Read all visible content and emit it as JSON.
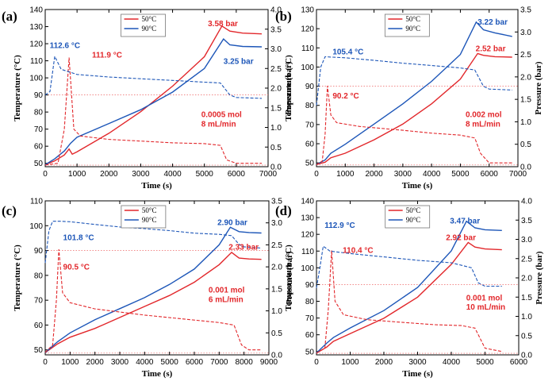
{
  "figure": {
    "colors": {
      "red": "#e2272b",
      "blue": "#1d56b8",
      "dotted_red": "#f07a7a"
    }
  },
  "chart_data": [
    {
      "type": "line",
      "panel_label": "(a)",
      "xlabel": "Time (s)",
      "ylabel_left": "Temperature (°C)",
      "ylabel_right": "Pressure (bar)",
      "xlim": [
        0,
        7000
      ],
      "ylim_left": [
        48,
        140
      ],
      "ylim_right": [
        0,
        4.0
      ],
      "xticks": [
        "0",
        "1000",
        "2000",
        "3000",
        "4000",
        "5000",
        "6000",
        "7000"
      ],
      "yticks_left": [
        "50",
        "60",
        "70",
        "80",
        "90",
        "100",
        "110",
        "120",
        "130",
        "140"
      ],
      "yticks_right": [
        "0.0",
        "0.5",
        "1.0",
        "1.5",
        "2.0",
        "2.5",
        "3.0",
        "3.5",
        "4.0"
      ],
      "legend": [
        "50°C",
        "90°C"
      ],
      "annotations": [
        "3.58 bar",
        "3.25 bar",
        "112.6 °C",
        "111.9 °C",
        "0.0005 mol",
        "8 mL/min"
      ],
      "ref_line_temp": 90,
      "series": [
        {
          "name": "50°C pressure",
          "axis": "right",
          "style": "solid",
          "color": "red",
          "x": [
            0,
            300,
            600,
            750,
            850,
            1000,
            2000,
            3000,
            4000,
            5000,
            5550,
            5800,
            6200,
            6800
          ],
          "y": [
            0.05,
            0.15,
            0.3,
            0.45,
            0.32,
            0.38,
            0.85,
            1.4,
            2.05,
            2.8,
            3.58,
            3.45,
            3.4,
            3.38
          ]
        },
        {
          "name": "90°C pressure",
          "axis": "right",
          "style": "solid",
          "color": "blue",
          "x": [
            0,
            300,
            600,
            800,
            1000,
            2000,
            3000,
            4000,
            5000,
            5600,
            5800,
            6200,
            6800
          ],
          "y": [
            0.05,
            0.2,
            0.4,
            0.6,
            0.75,
            1.1,
            1.45,
            1.9,
            2.5,
            3.25,
            3.1,
            3.06,
            3.05
          ]
        },
        {
          "name": "50°C temperature",
          "axis": "left",
          "style": "dashed",
          "color": "red",
          "x": [
            0,
            400,
            600,
            750,
            900,
            1100,
            2000,
            3000,
            4000,
            5000,
            5500,
            5700,
            6000,
            6800
          ],
          "y": [
            49,
            50,
            70,
            111.9,
            70,
            66,
            64,
            63,
            62,
            61.5,
            60.5,
            52,
            50,
            50
          ]
        },
        {
          "name": "90°C temperature",
          "axis": "left",
          "style": "dashed",
          "color": "blue",
          "x": [
            0,
            150,
            300,
            500,
            1000,
            2000,
            3000,
            4000,
            5000,
            5500,
            5800,
            6000,
            6800
          ],
          "y": [
            90,
            92,
            112.6,
            105,
            102,
            100.5,
            99.5,
            98.5,
            97.5,
            97,
            90,
            88.5,
            88
          ]
        }
      ]
    },
    {
      "type": "line",
      "panel_label": "(b)",
      "xlabel": "Time (s)",
      "ylabel_left": "Temperature (°C)",
      "ylabel_right": "Pressure (bar)",
      "xlim": [
        0,
        7000
      ],
      "ylim_left": [
        48,
        130
      ],
      "ylim_right": [
        0,
        3.5
      ],
      "xticks": [
        "0",
        "1000",
        "2000",
        "3000",
        "4000",
        "5000",
        "6000",
        "7000"
      ],
      "yticks_left": [
        "50",
        "60",
        "70",
        "80",
        "90",
        "100",
        "110",
        "120",
        "130"
      ],
      "yticks_right": [
        "0.0",
        "0.5",
        "1.0",
        "1.5",
        "2.0",
        "2.5",
        "3.0",
        "3.5"
      ],
      "legend": [
        "50°C",
        "90°C"
      ],
      "annotations": [
        "3.22 bar",
        "2.52 bar",
        "105.4 °C",
        "90.2 °C",
        "0.002 mol",
        "8 mL/min"
      ],
      "ref_line_temp": 90,
      "series": [
        {
          "name": "50°C pressure",
          "axis": "right",
          "style": "solid",
          "color": "red",
          "x": [
            0,
            300,
            500,
            1000,
            2000,
            3000,
            4000,
            5000,
            5600,
            5800,
            6200,
            6800
          ],
          "y": [
            0.05,
            0.1,
            0.2,
            0.3,
            0.6,
            0.95,
            1.4,
            1.95,
            2.52,
            2.48,
            2.45,
            2.44
          ]
        },
        {
          "name": "90°C pressure",
          "axis": "right",
          "style": "solid",
          "color": "blue",
          "x": [
            0,
            300,
            500,
            1000,
            2000,
            3000,
            4000,
            5000,
            5550,
            5800,
            6200,
            6800
          ],
          "y": [
            0.05,
            0.15,
            0.3,
            0.5,
            0.95,
            1.4,
            1.9,
            2.5,
            3.22,
            3.05,
            2.98,
            2.9
          ]
        },
        {
          "name": "50°C temperature",
          "axis": "left",
          "style": "dashed",
          "color": "red",
          "x": [
            0,
            200,
            300,
            380,
            500,
            700,
            1500,
            3000,
            4000,
            5000,
            5500,
            5700,
            6000,
            6800
          ],
          "y": [
            49,
            51,
            65,
            90.2,
            75,
            71,
            69,
            67,
            65.5,
            64.5,
            63,
            55,
            50,
            50
          ]
        },
        {
          "name": "90°C temperature",
          "axis": "left",
          "style": "dashed",
          "color": "blue",
          "x": [
            0,
            150,
            300,
            500,
            1000,
            2000,
            3000,
            4000,
            5000,
            5500,
            5800,
            6000,
            6800
          ],
          "y": [
            80,
            100,
            105.4,
            105.2,
            104.8,
            103.5,
            102,
            100.8,
            99.5,
            98.5,
            90,
            88.5,
            88
          ]
        }
      ]
    },
    {
      "type": "line",
      "panel_label": "(c)",
      "xlabel": "Time (s)",
      "ylabel_left": "Temperature (°C)",
      "ylabel_right": "Pressure (bar)",
      "xlim": [
        0,
        9000
      ],
      "ylim_left": [
        48,
        110
      ],
      "ylim_right": [
        0,
        3.5
      ],
      "xticks": [
        "0",
        "1000",
        "2000",
        "3000",
        "4000",
        "5000",
        "6000",
        "7000",
        "8000",
        "9000"
      ],
      "yticks_left": [
        "50",
        "60",
        "70",
        "80",
        "90",
        "100",
        "110"
      ],
      "yticks_right": [
        "0.0",
        "0.5",
        "1.0",
        "1.5",
        "2.0",
        "2.5",
        "3.0",
        "3.5"
      ],
      "legend": [
        "50°C",
        "90°C"
      ],
      "annotations": [
        "2.90 bar",
        "2.33 bar",
        "101.8 °C",
        "90.5 °C",
        "0.001 mol",
        "6 mL/min"
      ],
      "ref_line_temp": 90,
      "series": [
        {
          "name": "50°C pressure",
          "axis": "right",
          "style": "solid",
          "color": "red",
          "x": [
            0,
            500,
            1000,
            2000,
            3000,
            4000,
            5000,
            6000,
            7000,
            7500,
            7800,
            8200,
            8700
          ],
          "y": [
            0.05,
            0.25,
            0.4,
            0.6,
            0.85,
            1.1,
            1.35,
            1.65,
            2.05,
            2.33,
            2.2,
            2.18,
            2.17
          ]
        },
        {
          "name": "90°C pressure",
          "axis": "right",
          "style": "solid",
          "color": "blue",
          "x": [
            0,
            500,
            1000,
            2000,
            3000,
            4000,
            5000,
            6000,
            7000,
            7450,
            7800,
            8200,
            8700
          ],
          "y": [
            0.05,
            0.3,
            0.5,
            0.8,
            1.05,
            1.3,
            1.6,
            1.95,
            2.5,
            2.9,
            2.8,
            2.78,
            2.77
          ]
        },
        {
          "name": "50°C temperature",
          "axis": "left",
          "style": "dashed",
          "color": "red",
          "x": [
            0,
            300,
            450,
            550,
            700,
            1000,
            2000,
            4000,
            6000,
            7000,
            7600,
            7900,
            8200,
            8700
          ],
          "y": [
            49,
            52,
            70,
            90.5,
            73,
            69,
            66.5,
            64,
            62,
            61,
            60,
            52,
            50,
            50
          ]
        },
        {
          "name": "90°C temperature",
          "axis": "left",
          "style": "dashed",
          "color": "blue",
          "x": [
            0,
            150,
            300,
            600,
            1000,
            2000,
            3000,
            4000,
            5000,
            6000,
            7000,
            7500,
            7800,
            8000,
            8700
          ],
          "y": [
            85,
            98,
            101.8,
            101.8,
            101.6,
            100.5,
            99.5,
            98.8,
            98,
            97,
            96.5,
            96,
            92.5,
            91.5,
            91
          ]
        }
      ]
    },
    {
      "type": "line",
      "panel_label": "(d)",
      "xlabel": "Time (s)",
      "ylabel_left": "Temperature (°C)",
      "ylabel_right": "Pressure (bar)",
      "xlim": [
        0,
        6000
      ],
      "ylim_left": [
        48,
        140
      ],
      "ylim_right": [
        0,
        4.0
      ],
      "xticks": [
        "0",
        "1000",
        "2000",
        "3000",
        "4000",
        "5000",
        "6000"
      ],
      "yticks_left": [
        "50",
        "60",
        "70",
        "80",
        "90",
        "100",
        "110",
        "120",
        "130",
        "140"
      ],
      "yticks_right": [
        "0.0",
        "0.5",
        "1.0",
        "1.5",
        "2.0",
        "2.5",
        "3.0",
        "3.5",
        "4.0"
      ],
      "legend": [
        "50°C",
        "90°C"
      ],
      "annotations": [
        "3.47 bar",
        "2.92 bar",
        "112.9 °C",
        "110.4 °C",
        "0.001 mol",
        "10 mL/min"
      ],
      "ref_line_temp": 90,
      "series": [
        {
          "name": "50°C pressure",
          "axis": "right",
          "style": "solid",
          "color": "red",
          "x": [
            0,
            300,
            500,
            1000,
            2000,
            3000,
            4000,
            4500,
            4700,
            5000,
            5500
          ],
          "y": [
            0.05,
            0.2,
            0.35,
            0.55,
            0.95,
            1.5,
            2.35,
            2.92,
            2.8,
            2.75,
            2.73
          ]
        },
        {
          "name": "90°C pressure",
          "axis": "right",
          "style": "solid",
          "color": "blue",
          "x": [
            0,
            300,
            500,
            1000,
            2000,
            3000,
            4000,
            4450,
            4700,
            5000,
            5500
          ],
          "y": [
            0.05,
            0.3,
            0.45,
            0.7,
            1.15,
            1.75,
            2.7,
            3.47,
            3.3,
            3.25,
            3.23
          ]
        },
        {
          "name": "50°C temperature",
          "axis": "left",
          "style": "dashed",
          "color": "red",
          "x": [
            0,
            250,
            350,
            450,
            550,
            800,
            1500,
            2500,
            3500,
            4300,
            4700,
            5000,
            5500
          ],
          "y": [
            49,
            52,
            75,
            110.4,
            80,
            72,
            69,
            67.5,
            66,
            65.5,
            64,
            52,
            50
          ]
        },
        {
          "name": "90°C temperature",
          "axis": "left",
          "style": "dashed",
          "color": "blue",
          "x": [
            0,
            100,
            200,
            400,
            1000,
            2000,
            3000,
            4000,
            4600,
            4800,
            5000,
            5500
          ],
          "y": [
            88,
            100,
            112.9,
            110,
            108.5,
            106.5,
            104.5,
            103,
            100,
            91,
            89,
            89
          ]
        }
      ]
    }
  ]
}
